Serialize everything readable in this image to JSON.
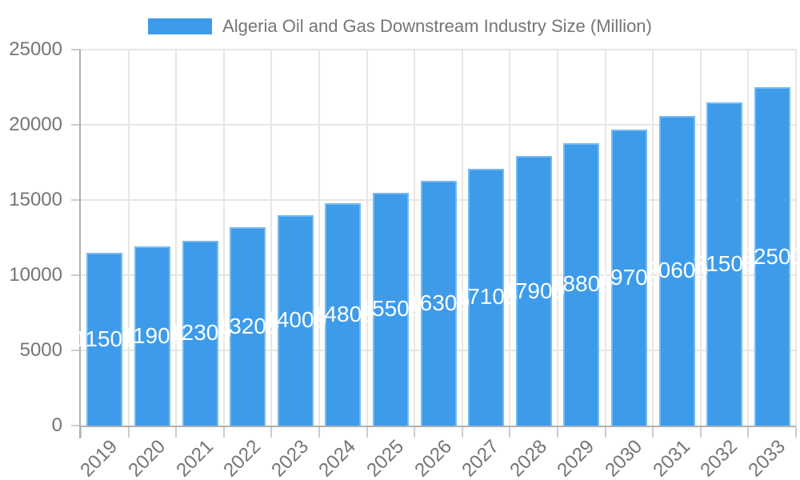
{
  "legend": {
    "label": "Algeria Oil and Gas Downstream Industry Size (Million)"
  },
  "chart_data": {
    "type": "bar",
    "title": "Algeria Oil and Gas Downstream Industry Size (Million)",
    "categories": [
      "2019",
      "2020",
      "2021",
      "2022",
      "2023",
      "2024",
      "2025",
      "2026",
      "2027",
      "2028",
      "2029",
      "2030",
      "2031",
      "2032",
      "2033"
    ],
    "values": [
      11500,
      11900,
      12300,
      13200,
      14000,
      14800,
      15500,
      16300,
      17100,
      17900,
      18800,
      19700,
      20600,
      21500,
      22500
    ],
    "xlabel": "",
    "ylabel": "",
    "ylim": [
      0,
      25000
    ],
    "yticks": [
      0,
      5000,
      10000,
      15000,
      20000,
      25000
    ],
    "grid": true,
    "legend_position": "top",
    "bar_color": "#3d9bea",
    "value_label_color": "#ffffff"
  },
  "colors": {
    "grid_line": "#e6e6e6",
    "axis_line": "#b0b0b0",
    "tick": "#cccccc",
    "axis_text": "#757575",
    "legend_text": "#757575",
    "background": "#ffffff"
  }
}
